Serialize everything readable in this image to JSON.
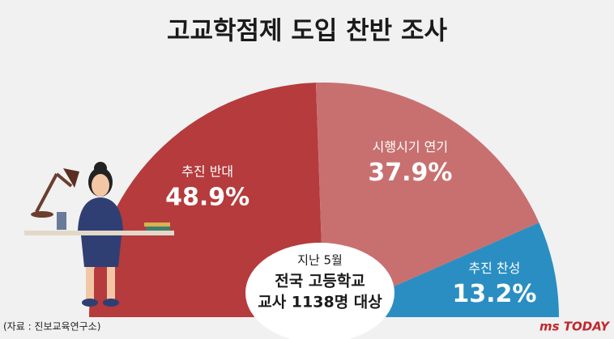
{
  "chart_data": {
    "type": "pie",
    "half": true,
    "title": "고교학점제 도입 찬반 조사",
    "categories": [
      "추진 반대",
      "시행시기 연기",
      "추진 찬성"
    ],
    "values": [
      48.9,
      37.9,
      13.2
    ],
    "value_labels": [
      "48.9%",
      "37.9%",
      "13.2%"
    ],
    "colors": [
      "#b53b3d",
      "#c87070",
      "#2a8ec2"
    ],
    "center_text": [
      "지난 5월",
      "전국 고등학교",
      "교사 1138명 대상"
    ],
    "source": "(자료 : 진보교육연구소)",
    "logo": "ms TODAY"
  }
}
